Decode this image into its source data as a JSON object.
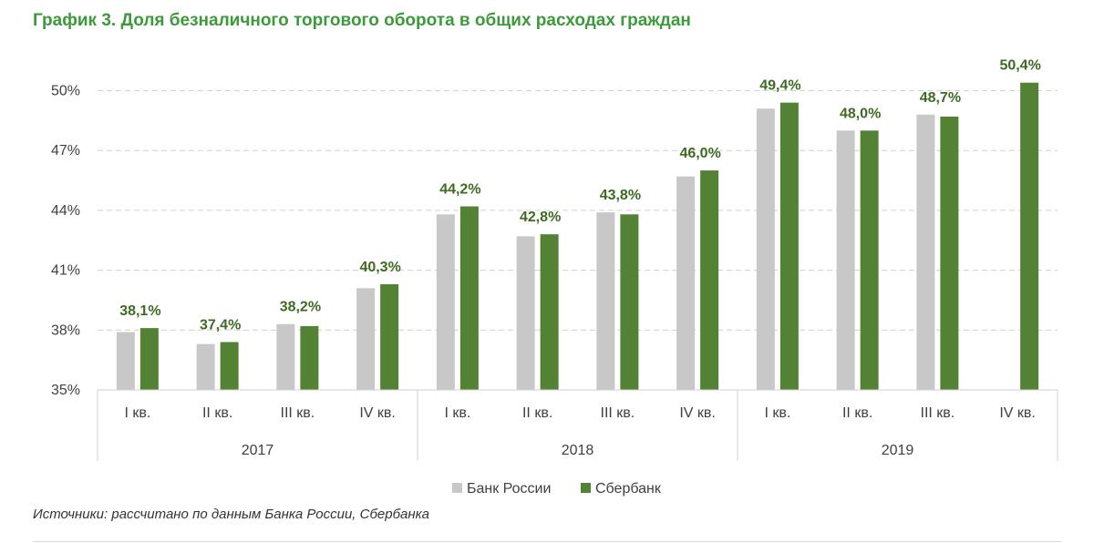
{
  "title": "График 3. Доля безналичного торгового оборота в общих расходах граждан",
  "source": "Источники: рассчитано по данным Банка России, Сбербанка",
  "colors": {
    "bank_russia": "#c8c8c8",
    "sberbank": "#548235",
    "label": "#3e6b22",
    "grid": "#d0d0d0",
    "axis_text": "#404040"
  },
  "chart_data": {
    "type": "bar",
    "categories": [
      "I кв.",
      "II кв.",
      "III кв.",
      "IV кв.",
      "I кв.",
      "II кв.",
      "III кв.",
      "IV кв.",
      "I кв.",
      "II кв.",
      "III кв.",
      "IV кв."
    ],
    "groups": [
      {
        "label": "2017",
        "span": 4
      },
      {
        "label": "2018",
        "span": 4
      },
      {
        "label": "2019",
        "span": 4
      }
    ],
    "series": [
      {
        "name": "Банк России",
        "values": [
          37.9,
          37.3,
          38.3,
          40.1,
          43.8,
          42.7,
          43.9,
          45.7,
          49.1,
          48.0,
          48.8,
          null
        ]
      },
      {
        "name": "Сбербанк",
        "values": [
          38.1,
          37.4,
          38.2,
          40.3,
          44.2,
          42.8,
          43.8,
          46.0,
          49.4,
          48.0,
          48.7,
          50.4
        ]
      }
    ],
    "data_labels": [
      "38,1%",
      "37,4%",
      "38,2%",
      "40,3%",
      "44,2%",
      "42,8%",
      "43,8%",
      "46,0%",
      "49,4%",
      "48,0%",
      "48,7%",
      "50,4%"
    ],
    "yticks": [
      "35%",
      "38%",
      "41%",
      "44%",
      "47%",
      "50%"
    ],
    "ytick_values": [
      35,
      38,
      41,
      44,
      47,
      50
    ],
    "ylim": [
      35,
      51.5
    ],
    "grid": true,
    "legend_position": "bottom-center"
  }
}
